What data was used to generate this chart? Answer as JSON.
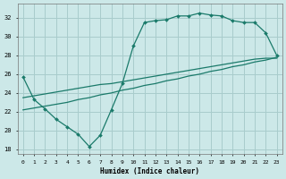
{
  "xlabel": "Humidex (Indice chaleur)",
  "bg_color": "#cce8e8",
  "grid_color": "#a8cccc",
  "line_color": "#1a7a6a",
  "xlim": [
    -0.5,
    23.5
  ],
  "ylim": [
    17.5,
    33.5
  ],
  "xticks": [
    0,
    1,
    2,
    3,
    4,
    5,
    6,
    7,
    8,
    9,
    10,
    11,
    12,
    13,
    14,
    15,
    16,
    17,
    18,
    19,
    20,
    21,
    22,
    23
  ],
  "yticks": [
    18,
    20,
    22,
    24,
    26,
    28,
    30,
    32
  ],
  "line1_x": [
    0,
    1,
    2,
    3,
    4,
    5,
    6,
    7,
    8,
    9,
    10,
    11,
    12,
    13,
    14,
    15,
    16,
    17,
    18,
    19,
    20,
    21,
    22,
    23
  ],
  "line1_y": [
    25.7,
    23.3,
    22.3,
    21.2,
    20.4,
    19.6,
    18.3,
    19.5,
    22.2,
    25.0,
    29.0,
    31.5,
    31.7,
    31.8,
    32.2,
    32.2,
    32.5,
    32.3,
    32.2,
    31.7,
    31.5,
    31.5,
    30.4,
    28.0
  ],
  "line2_x": [
    0,
    1,
    2,
    3,
    4,
    5,
    6,
    7,
    8,
    9,
    10,
    11,
    12,
    13,
    14,
    15,
    16,
    17,
    18,
    19,
    20,
    21,
    22,
    23
  ],
  "line2_y": [
    23.5,
    23.7,
    23.9,
    24.1,
    24.3,
    24.5,
    24.7,
    24.9,
    25.0,
    25.2,
    25.4,
    25.6,
    25.8,
    26.0,
    26.2,
    26.4,
    26.6,
    26.8,
    27.0,
    27.2,
    27.4,
    27.6,
    27.7,
    27.7
  ],
  "line3_x": [
    0,
    1,
    2,
    3,
    4,
    5,
    6,
    7,
    8,
    9,
    10,
    11,
    12,
    13,
    14,
    15,
    16,
    17,
    18,
    19,
    20,
    21,
    22,
    23
  ],
  "line3_y": [
    22.2,
    22.4,
    22.6,
    22.8,
    23.0,
    23.3,
    23.5,
    23.8,
    24.0,
    24.3,
    24.5,
    24.8,
    25.0,
    25.3,
    25.5,
    25.8,
    26.0,
    26.3,
    26.5,
    26.8,
    27.0,
    27.3,
    27.5,
    27.8
  ]
}
